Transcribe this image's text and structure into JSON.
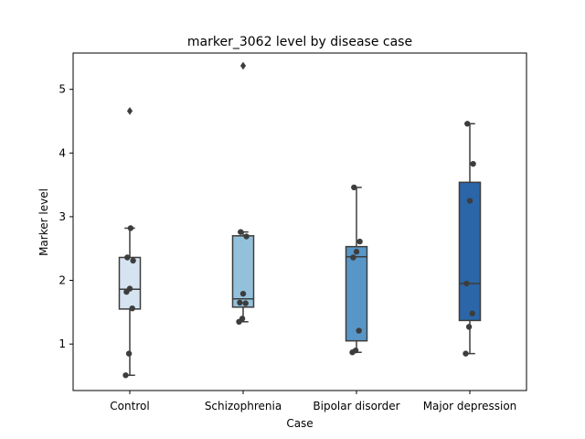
{
  "chart_data": {
    "type": "box",
    "title": "marker_3062 level by disease case",
    "xlabel": "Case",
    "ylabel": "Marker level",
    "ylim": [
      0.27,
      5.57
    ],
    "yticks": [
      1,
      2,
      3,
      4,
      5
    ],
    "grid": false,
    "categories": [
      "Control",
      "Schizophrenia",
      "Bipolar disorder",
      "Major depression"
    ],
    "colors": [
      "#d6e3f1",
      "#93c1db",
      "#5896c7",
      "#2a66a8"
    ],
    "boxes": [
      {
        "q1": 1.55,
        "median": 1.86,
        "q3": 2.36,
        "whisker_low": 0.51,
        "whisker_high": 2.82,
        "outliers": [
          4.66
        ]
      },
      {
        "q1": 1.58,
        "median": 1.71,
        "q3": 2.7,
        "whisker_low": 1.35,
        "whisker_high": 2.76,
        "outliers": [
          5.37
        ]
      },
      {
        "q1": 1.05,
        "median": 2.37,
        "q3": 2.53,
        "whisker_low": 0.87,
        "whisker_high": 3.46,
        "outliers": []
      },
      {
        "q1": 1.37,
        "median": 1.95,
        "q3": 3.54,
        "whisker_low": 0.85,
        "whisker_high": 4.46,
        "outliers": []
      }
    ],
    "points": [
      [
        0.51,
        0.85,
        1.56,
        1.82,
        1.87,
        2.31,
        2.36,
        2.82
      ],
      [
        1.35,
        1.4,
        1.64,
        1.65,
        1.79,
        2.69,
        2.76
      ],
      [
        0.87,
        0.9,
        1.21,
        2.36,
        2.45,
        2.61,
        3.46
      ],
      [
        0.85,
        1.27,
        1.48,
        1.95,
        3.25,
        3.83,
        4.46
      ]
    ]
  }
}
